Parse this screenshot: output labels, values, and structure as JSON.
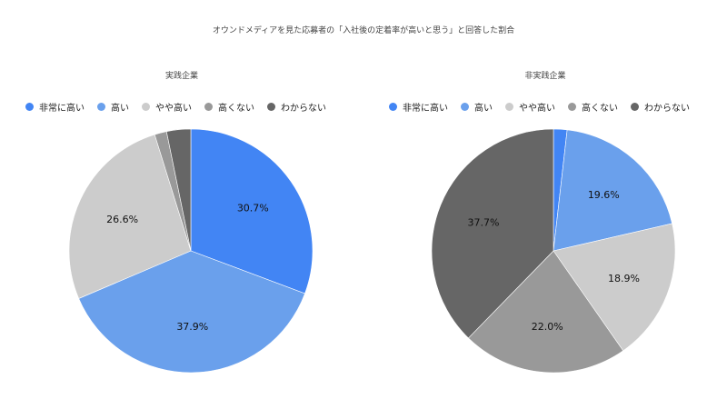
{
  "title": "オウンドメディアを見た応募者の「入社後の定着率が高いと思う」と回答した割合",
  "legend_labels": [
    "非常に高い",
    "高い",
    "やや高い",
    "高くない",
    "わからない"
  ],
  "colors": [
    "#4285f4",
    "#6aa0ec",
    "#cccccc",
    "#999999",
    "#666666"
  ],
  "chart_data": [
    {
      "type": "pie",
      "title": "実践企業",
      "categories": [
        "非常に高い",
        "高い",
        "やや高い",
        "高くない",
        "わからない"
      ],
      "values": [
        30.7,
        37.9,
        26.6,
        1.6,
        3.2
      ],
      "labels": [
        "30.7%",
        "37.9%",
        "26.6%",
        "",
        ""
      ],
      "legend_position": "top"
    },
    {
      "type": "pie",
      "title": "非実践企業",
      "categories": [
        "非常に高い",
        "高い",
        "やや高い",
        "高くない",
        "わからない"
      ],
      "values": [
        1.8,
        19.6,
        18.9,
        22.0,
        37.7
      ],
      "labels": [
        "",
        "19.6%",
        "18.9%",
        "22.0%",
        "37.7%"
      ],
      "legend_position": "top"
    }
  ]
}
